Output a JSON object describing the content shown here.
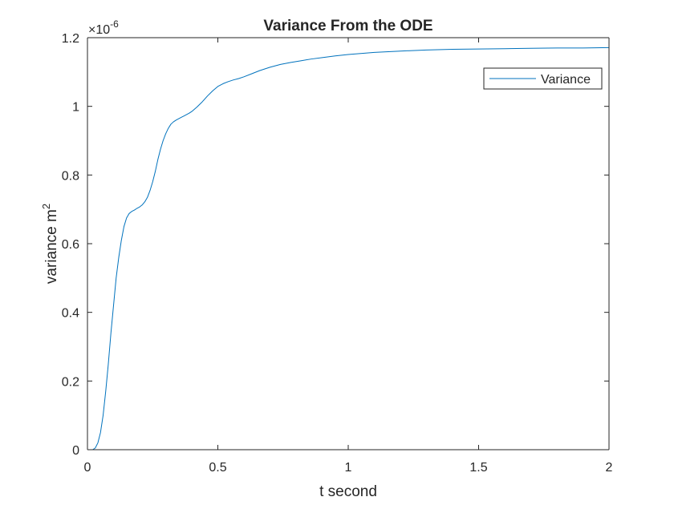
{
  "chart_data": {
    "type": "line",
    "title": "Variance From the ODE",
    "xlabel": "t second",
    "ylabel_main": "variance m",
    "ylabel_sup": "2",
    "exponent_base": "×10",
    "exponent_power": "-6",
    "xlim": [
      0,
      2
    ],
    "ylim": [
      0,
      1.2
    ],
    "xticks": [
      0,
      0.5,
      1,
      1.5,
      2
    ],
    "xtick_labels": [
      "0",
      "0.5",
      "1",
      "1.5",
      "2"
    ],
    "yticks": [
      0,
      0.2,
      0.4,
      0.6,
      0.8,
      1,
      1.2
    ],
    "ytick_labels": [
      "0",
      "0.2",
      "0.4",
      "0.6",
      "0.8",
      "1",
      "1.2"
    ],
    "grid": false,
    "legend_position": "top-right",
    "series": [
      {
        "name": "Variance",
        "color": "#0072BD",
        "x": [
          0,
          0.02,
          0.03,
          0.04,
          0.05,
          0.06,
          0.07,
          0.08,
          0.09,
          0.1,
          0.11,
          0.12,
          0.13,
          0.14,
          0.15,
          0.16,
          0.17,
          0.18,
          0.19,
          0.2,
          0.21,
          0.22,
          0.23,
          0.24,
          0.25,
          0.26,
          0.27,
          0.28,
          0.29,
          0.3,
          0.31,
          0.32,
          0.33,
          0.34,
          0.35,
          0.36,
          0.37,
          0.38,
          0.39,
          0.4,
          0.42,
          0.44,
          0.46,
          0.48,
          0.5,
          0.52,
          0.54,
          0.56,
          0.58,
          0.6,
          0.63,
          0.66,
          0.7,
          0.74,
          0.78,
          0.82,
          0.86,
          0.9,
          0.95,
          1.0,
          1.1,
          1.2,
          1.3,
          1.4,
          1.5,
          1.6,
          1.7,
          1.8,
          1.9,
          2.0
        ],
        "y": [
          0,
          0.0,
          0.005,
          0.02,
          0.05,
          0.1,
          0.17,
          0.25,
          0.34,
          0.42,
          0.5,
          0.56,
          0.61,
          0.65,
          0.675,
          0.688,
          0.694,
          0.698,
          0.703,
          0.707,
          0.713,
          0.722,
          0.735,
          0.755,
          0.78,
          0.81,
          0.845,
          0.875,
          0.9,
          0.92,
          0.936,
          0.948,
          0.955,
          0.96,
          0.964,
          0.968,
          0.972,
          0.976,
          0.98,
          0.985,
          0.998,
          1.013,
          1.03,
          1.045,
          1.058,
          1.066,
          1.072,
          1.077,
          1.081,
          1.086,
          1.095,
          1.104,
          1.114,
          1.122,
          1.128,
          1.133,
          1.138,
          1.142,
          1.147,
          1.151,
          1.157,
          1.161,
          1.164,
          1.166,
          1.167,
          1.168,
          1.169,
          1.17,
          1.17,
          1.171
        ]
      }
    ]
  }
}
